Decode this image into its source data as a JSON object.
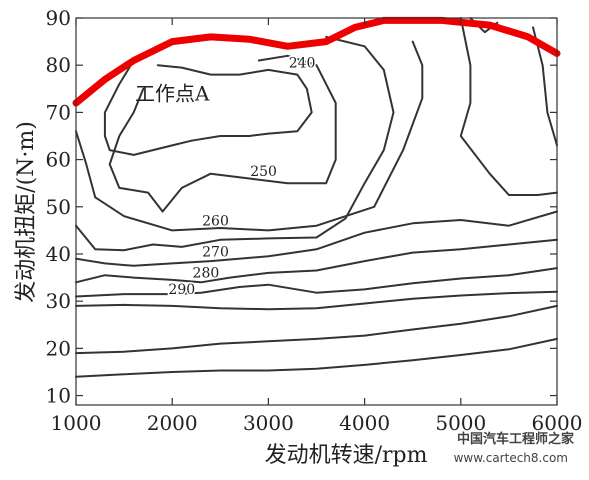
{
  "chart_data": {
    "type": "contour",
    "xlabel": "发动机转速/rpm",
    "ylabel": "发动机扭矩/(N·m)",
    "xlim": [
      1000,
      6000
    ],
    "ylim": [
      8,
      90
    ],
    "x_ticks": [
      1000,
      2000,
      3000,
      4000,
      5000,
      6000
    ],
    "y_ticks": [
      10,
      20,
      30,
      40,
      50,
      60,
      70,
      80,
      90
    ],
    "grid": false,
    "contours": [
      {
        "label": "",
        "points": [
          [
            1000,
            14
          ],
          [
            1500,
            14.5
          ],
          [
            2000,
            15
          ],
          [
            2500,
            15.3
          ],
          [
            3000,
            15.3
          ],
          [
            3500,
            15.7
          ],
          [
            4000,
            16.5
          ],
          [
            4500,
            17.5
          ],
          [
            5000,
            18.6
          ],
          [
            5500,
            19.8
          ],
          [
            6000,
            22
          ]
        ]
      },
      {
        "label": "",
        "points": [
          [
            1000,
            19
          ],
          [
            1500,
            19.3
          ],
          [
            2000,
            20
          ],
          [
            2500,
            21
          ],
          [
            3000,
            21.5
          ],
          [
            3500,
            22
          ],
          [
            4000,
            22.7
          ],
          [
            4500,
            24
          ],
          [
            5000,
            25.2
          ],
          [
            5500,
            26.8
          ],
          [
            6000,
            29
          ]
        ]
      },
      {
        "label": "",
        "points": [
          [
            1000,
            29
          ],
          [
            1500,
            29.2
          ],
          [
            2000,
            29
          ],
          [
            2500,
            28.5
          ],
          [
            3000,
            28.3
          ],
          [
            3500,
            28.5
          ],
          [
            4000,
            29.5
          ],
          [
            4500,
            30.5
          ],
          [
            5000,
            31.2
          ],
          [
            5500,
            31.7
          ],
          [
            6000,
            32
          ]
        ]
      },
      {
        "label": "290",
        "points": [
          [
            1000,
            31
          ],
          [
            1500,
            31.5
          ],
          [
            2000,
            31.5
          ],
          [
            2300,
            31.8
          ],
          [
            2700,
            33
          ],
          [
            3000,
            33.5
          ],
          [
            3500,
            31.8
          ],
          [
            4000,
            32.5
          ],
          [
            4500,
            33.8
          ],
          [
            5000,
            34.8
          ],
          [
            5500,
            35.5
          ],
          [
            6000,
            37
          ]
        ]
      },
      {
        "label": "280",
        "points": [
          [
            1000,
            34
          ],
          [
            1300,
            35.5
          ],
          [
            1600,
            35
          ],
          [
            2000,
            34.5
          ],
          [
            2300,
            34
          ],
          [
            2600,
            35
          ],
          [
            3000,
            36
          ],
          [
            3500,
            36.5
          ],
          [
            4000,
            38.5
          ],
          [
            4500,
            40.3
          ],
          [
            5000,
            41
          ],
          [
            5500,
            42
          ],
          [
            6000,
            43
          ]
        ]
      },
      {
        "label": "270",
        "points": [
          [
            1000,
            39
          ],
          [
            1300,
            38
          ],
          [
            1600,
            37.5
          ],
          [
            2000,
            38
          ],
          [
            2400,
            38.5
          ],
          [
            3000,
            39.5
          ],
          [
            3500,
            41
          ],
          [
            4000,
            44.5
          ],
          [
            4500,
            46.5
          ],
          [
            5000,
            47.2
          ],
          [
            5500,
            46
          ],
          [
            6000,
            49
          ]
        ]
      },
      {
        "label": "260",
        "points": [
          [
            1000,
            46
          ],
          [
            1200,
            41
          ],
          [
            1500,
            40.8
          ],
          [
            1800,
            42
          ],
          [
            2100,
            41.5
          ],
          [
            2500,
            43
          ],
          [
            3000,
            43.3
          ],
          [
            3500,
            43.5
          ],
          [
            3800,
            47.5
          ],
          [
            4000,
            55
          ],
          [
            4200,
            62
          ],
          [
            4300,
            70
          ],
          [
            4200,
            79
          ],
          [
            4000,
            84
          ],
          [
            3600,
            86
          ]
        ]
      },
      {
        "label": "250",
        "points": [
          [
            1700,
            75
          ],
          [
            1600,
            70
          ],
          [
            1450,
            65
          ],
          [
            1350,
            59
          ],
          [
            1450,
            54
          ],
          [
            1750,
            53
          ],
          [
            1900,
            49
          ],
          [
            2100,
            54
          ],
          [
            2400,
            57
          ],
          [
            2800,
            56
          ],
          [
            3200,
            55
          ],
          [
            3600,
            55
          ],
          [
            3700,
            60
          ],
          [
            3700,
            67
          ],
          [
            3700,
            72
          ],
          [
            3600,
            76
          ],
          [
            3500,
            80
          ],
          [
            3200,
            82
          ],
          [
            2900,
            81
          ]
        ]
      },
      {
        "label": "240",
        "points": [
          [
            1600,
            81
          ],
          [
            1450,
            76
          ],
          [
            1300,
            70
          ],
          [
            1300,
            65
          ],
          [
            1350,
            62
          ],
          [
            1600,
            61
          ],
          [
            1800,
            62
          ],
          [
            2000,
            63
          ],
          [
            2200,
            64
          ],
          [
            2500,
            65
          ],
          [
            2800,
            65
          ],
          [
            3000,
            65.5
          ],
          [
            3300,
            66
          ],
          [
            3450,
            70
          ],
          [
            3400,
            75
          ],
          [
            3300,
            78
          ],
          [
            3000,
            79
          ],
          [
            2700,
            78
          ],
          [
            2400,
            78
          ],
          [
            2100,
            79.5
          ],
          [
            1850,
            80
          ]
        ]
      },
      {
        "label": "",
        "points": [
          [
            1000,
            66
          ],
          [
            1100,
            59.5
          ],
          [
            1200,
            52
          ],
          [
            1500,
            48
          ],
          [
            2000,
            45
          ],
          [
            2500,
            45.5
          ],
          [
            3000,
            45
          ],
          [
            3500,
            46
          ],
          [
            4100,
            50
          ],
          [
            4400,
            62
          ],
          [
            4600,
            73
          ],
          [
            4600,
            80
          ],
          [
            4500,
            85
          ]
        ]
      },
      {
        "label": "",
        "points": [
          [
            5000,
            90
          ],
          [
            5100,
            80
          ],
          [
            5100,
            72
          ],
          [
            5000,
            65
          ],
          [
            5300,
            57
          ],
          [
            5500,
            52.5
          ],
          [
            5800,
            52.5
          ],
          [
            6000,
            53
          ]
        ]
      },
      {
        "label": "",
        "points": [
          [
            5750,
            88
          ],
          [
            5850,
            80
          ],
          [
            5900,
            70
          ],
          [
            6000,
            63
          ]
        ]
      },
      {
        "label": "",
        "points": [
          [
            5100,
            90
          ],
          [
            5250,
            87
          ],
          [
            5380,
            89
          ]
        ]
      }
    ],
    "boundary": {
      "label": "",
      "color": "#ee0000",
      "points": [
        [
          1000,
          72
        ],
        [
          1300,
          77
        ],
        [
          1600,
          81
        ],
        [
          2000,
          85
        ],
        [
          2400,
          86
        ],
        [
          2800,
          85.5
        ],
        [
          3200,
          84
        ],
        [
          3600,
          85
        ],
        [
          3900,
          88
        ],
        [
          4200,
          89.5
        ],
        [
          4800,
          89.5
        ],
        [
          5300,
          88.5
        ],
        [
          5700,
          86
        ],
        [
          6000,
          82.5
        ]
      ]
    },
    "annotations": [
      {
        "text": "工作点A",
        "x": 2000,
        "y": 72.5
      }
    ]
  },
  "watermark": {
    "line1": "中国汽车工程师之家",
    "line2": "www.cartech8.com"
  }
}
